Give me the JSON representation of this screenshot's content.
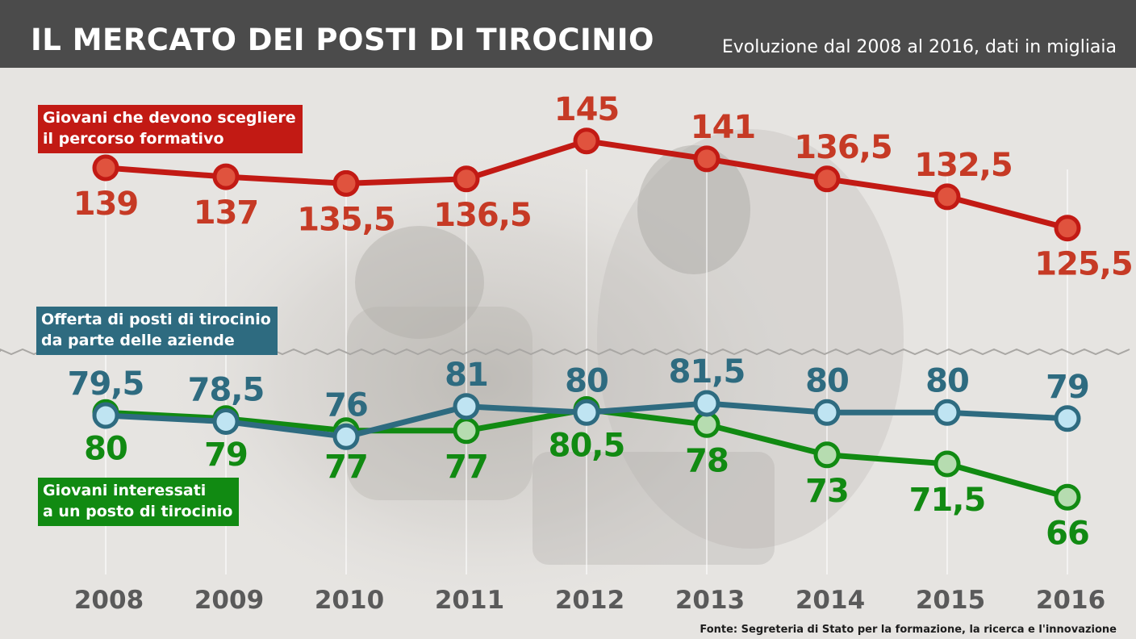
{
  "header": {
    "title": "IL MERCATO DEI POSTI DI TIROCINIO",
    "subtitle": "Evoluzione dal 2008 al 2016, dati in migliaia"
  },
  "source": "Fonte: Segreteria di Stato per la formazione, la ricerca e l'innovazione",
  "colors": {
    "header_bg": "#4b4b4b",
    "red": "#c21a14",
    "red_fill": "#e0533e",
    "blue": "#2e6b80",
    "blue_fill": "#bfe4f2",
    "green": "#118a12",
    "green_fill": "#b6dcb0",
    "year_labels": "#5a5a5a"
  },
  "chart_data": {
    "type": "line",
    "categories": [
      "2008",
      "2009",
      "2010",
      "2011",
      "2012",
      "2013",
      "2014",
      "2015",
      "2016"
    ],
    "series": [
      {
        "name_lines": [
          "Giovani che devono scegliere",
          "il percorso formativo"
        ],
        "values": [
          139,
          137,
          135.5,
          136.5,
          145,
          141,
          136.5,
          132.5,
          125.5
        ],
        "labels": [
          "139",
          "137",
          "135,5",
          "136,5",
          "145",
          "141",
          "136,5",
          "132,5",
          "125,5"
        ],
        "label_position": [
          "below",
          "below",
          "below",
          "below",
          "above",
          "above",
          "above",
          "above",
          "below"
        ]
      },
      {
        "name_lines": [
          "Offerta di posti di tirocinio",
          "da parte delle aziende"
        ],
        "values": [
          79.5,
          78.5,
          76,
          81,
          80,
          81.5,
          80,
          80,
          79
        ],
        "labels": [
          "79,5",
          "78,5",
          "76",
          "81",
          "80",
          "81,5",
          "80",
          "80",
          "79"
        ],
        "label_position": [
          "above",
          "above",
          "above",
          "above",
          "above",
          "above",
          "above",
          "above",
          "above"
        ]
      },
      {
        "name_lines": [
          "Giovani interessati",
          "a un posto di tirocinio"
        ],
        "values": [
          80,
          79,
          77,
          77,
          80.5,
          78,
          73,
          71.5,
          66
        ],
        "labels": [
          "80",
          "79",
          "77",
          "77",
          "80,5",
          "78",
          "73",
          "71,5",
          "66"
        ],
        "label_position": [
          "below",
          "below",
          "below",
          "below",
          "below",
          "below",
          "below",
          "below",
          "below"
        ]
      }
    ],
    "axis_break": true,
    "legend": "inline labels",
    "grid": "vertical lines per year"
  }
}
